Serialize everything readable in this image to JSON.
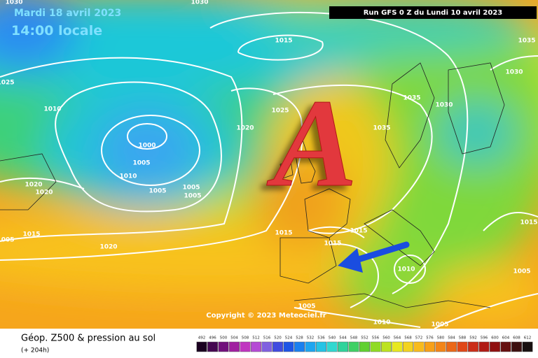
{
  "header": {
    "date": "Mardi 18 avril 2023",
    "time": "14:00 locale",
    "run": "Run GFS 0 Z du Lundi 10 avril 2023"
  },
  "map": {
    "high_marker": "A",
    "copyright": "Copyright © 2023 Meteociel.fr",
    "isobar_labels": [
      1030,
      1030,
      1015,
      1035,
      1025,
      1030,
      1035,
      1030,
      1010,
      1025,
      1020,
      1035,
      1000,
      1005,
      1010,
      1005,
      1005,
      1005,
      1020,
      1020,
      1015,
      1015,
      1015,
      1015,
      1005,
      1020,
      1015,
      1010,
      1005,
      1005,
      1010,
      1005
    ]
  },
  "footer": {
    "title": "Géop. Z500 & pression au sol",
    "lead": "(+ 204h)",
    "scale": [
      492,
      496,
      500,
      504,
      508,
      512,
      516,
      520,
      524,
      528,
      532,
      536,
      540,
      544,
      548,
      552,
      556,
      560,
      564,
      568,
      572,
      576,
      580,
      584,
      588,
      592,
      596,
      600,
      604,
      608,
      612
    ]
  }
}
